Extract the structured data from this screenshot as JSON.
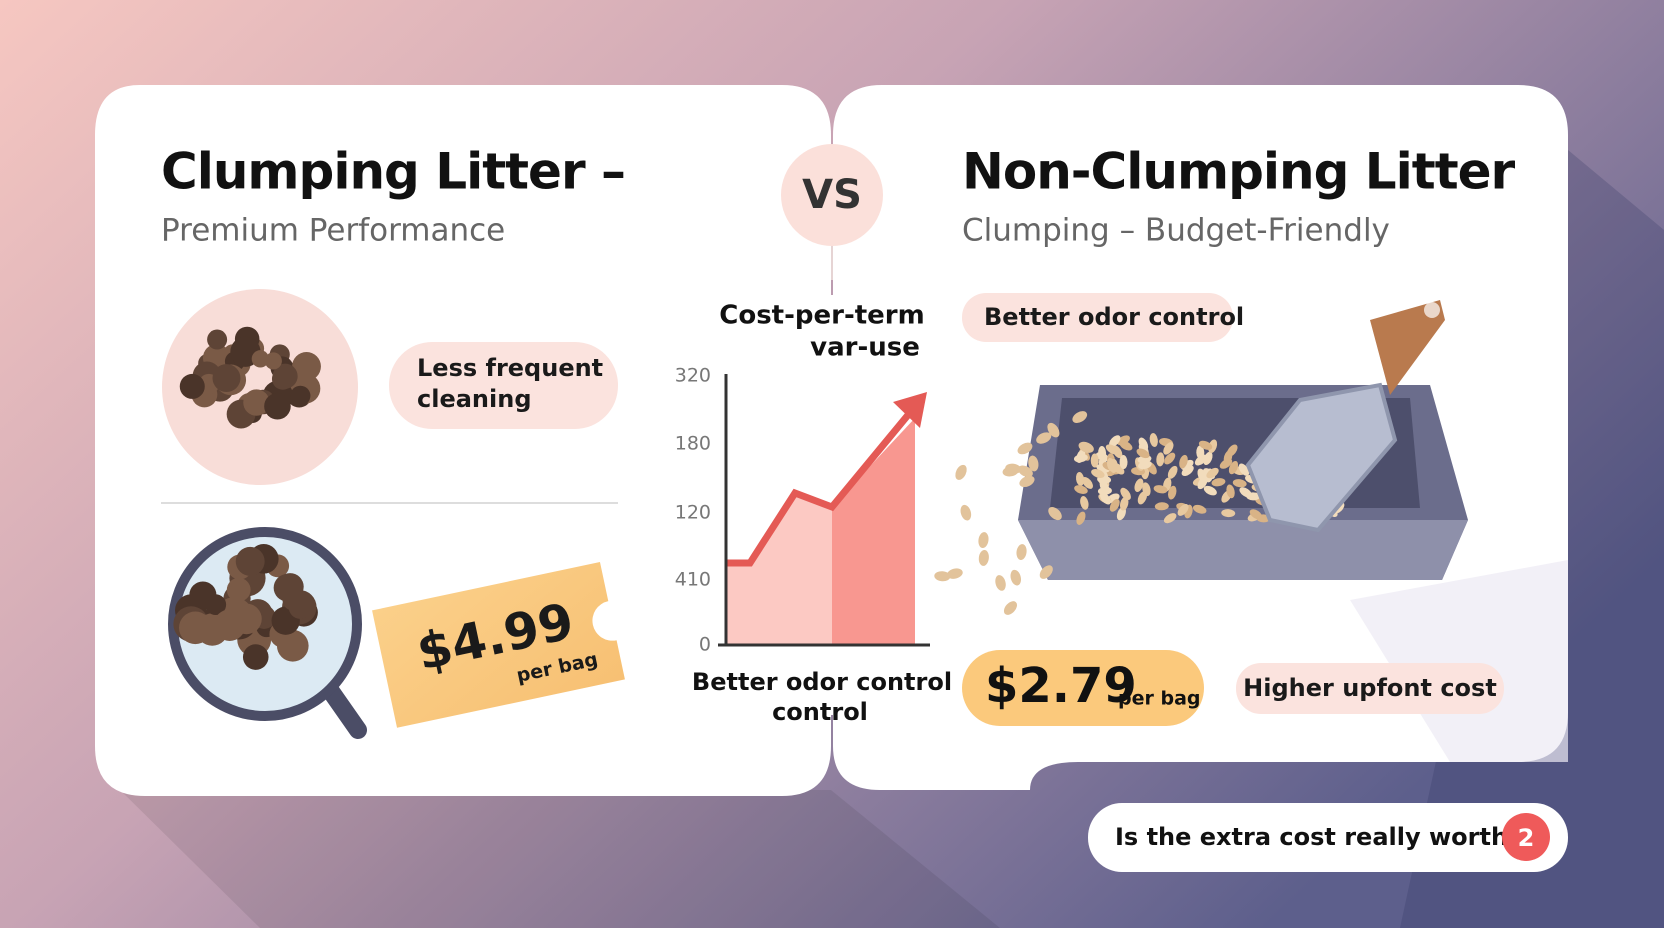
{
  "left": {
    "title": "Clumping Litter –",
    "subtitle": "Premium Performance",
    "feature": [
      "Less frequent",
      "cleaning"
    ],
    "price": "$4.99",
    "price_unit": "per bag"
  },
  "vs": "VS",
  "right": {
    "title": "Non-Clumping Litter",
    "subtitle": "Clumping – Budget-Friendly",
    "feature": "Better odor control",
    "price": "$2.79",
    "price_unit": "per bag",
    "drawback": "Higher upfont cost"
  },
  "chart": {
    "title": [
      "Cost-per-term",
      "var-use"
    ],
    "axis_labels": [
      320,
      180,
      120,
      410,
      0
    ],
    "caption": [
      "Better odor control"
    ]
  },
  "question": {
    "text": "Is the extra cost really worth it?",
    "badge": "2"
  }
}
